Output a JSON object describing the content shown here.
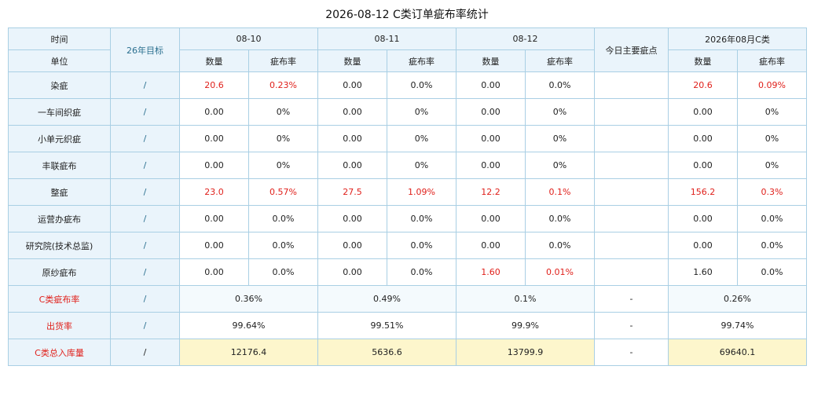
{
  "title": "2026-08-12 C类订单疵布率统计",
  "header": {
    "time_label": "时间",
    "unit_label": "单位",
    "target_label": "26年目标",
    "dates": [
      "08-10",
      "08-11",
      "08-12"
    ],
    "main_defect_label": "今日主要疵点",
    "month_label": "2026年08月C类",
    "qty_label": "数量",
    "rate_label": "疵布率"
  },
  "rows": [
    {
      "name": "染疵",
      "target": "/",
      "d1q": "20.6",
      "d1r": "0.23%",
      "d2q": "0.00",
      "d2r": "0.0%",
      "d3q": "0.00",
      "d3r": "0.0%",
      "main": "",
      "mq": "20.6",
      "mr": "0.09%"
    },
    {
      "name": "一车间织疵",
      "target": "/",
      "d1q": "0.00",
      "d1r": "0%",
      "d2q": "0.00",
      "d2r": "0%",
      "d3q": "0.00",
      "d3r": "0%",
      "main": "",
      "mq": "0.00",
      "mr": "0%"
    },
    {
      "name": "小单元织疵",
      "target": "/",
      "d1q": "0.00",
      "d1r": "0%",
      "d2q": "0.00",
      "d2r": "0%",
      "d3q": "0.00",
      "d3r": "0%",
      "main": "",
      "mq": "0.00",
      "mr": "0%"
    },
    {
      "name": "丰联疵布",
      "target": "/",
      "d1q": "0.00",
      "d1r": "0%",
      "d2q": "0.00",
      "d2r": "0%",
      "d3q": "0.00",
      "d3r": "0%",
      "main": "",
      "mq": "0.00",
      "mr": "0%"
    },
    {
      "name": "整疵",
      "target": "/",
      "d1q": "23.0",
      "d1r": "0.57%",
      "d2q": "27.5",
      "d2r": "1.09%",
      "d3q": "12.2",
      "d3r": "0.1%",
      "main": "",
      "mq": "156.2",
      "mr": "0.3%"
    },
    {
      "name": "运营办疵布",
      "target": "/",
      "d1q": "0.00",
      "d1r": "0.0%",
      "d2q": "0.00",
      "d2r": "0.0%",
      "d3q": "0.00",
      "d3r": "0.0%",
      "main": "",
      "mq": "0.00",
      "mr": "0.0%"
    },
    {
      "name": "研究院(技术总监)",
      "target": "/",
      "d1q": "0.00",
      "d1r": "0.0%",
      "d2q": "0.00",
      "d2r": "0.0%",
      "d3q": "0.00",
      "d3r": "0.0%",
      "main": "",
      "mq": "0.00",
      "mr": "0.0%"
    },
    {
      "name": "原纱疵布",
      "target": "/",
      "d1q": "0.00",
      "d1r": "0.0%",
      "d2q": "0.00",
      "d2r": "0.0%",
      "d3q": "1.60",
      "d3r": "0.01%",
      "main": "",
      "mq": "1.60",
      "mr": "0.0%"
    }
  ],
  "summary": [
    {
      "name": "C类疵布率",
      "target": "/",
      "d1": "0.36%",
      "d2": "0.49%",
      "d3": "0.1%",
      "main": "-",
      "month": "0.26%"
    },
    {
      "name": "出货率",
      "target": "/",
      "d1": "99.64%",
      "d2": "99.51%",
      "d3": "99.9%",
      "main": "-",
      "month": "99.74%"
    },
    {
      "name": "C类总入库量",
      "target": "/",
      "d1": "12176.4",
      "d2": "5636.6",
      "d3": "13799.9",
      "main": "-",
      "month": "69640.1"
    }
  ],
  "colors": {
    "highlight": "#e0201b",
    "header_bg": "#eaf4fb",
    "border": "#a9cfe4",
    "stock_bg": "#fdf6cc"
  }
}
